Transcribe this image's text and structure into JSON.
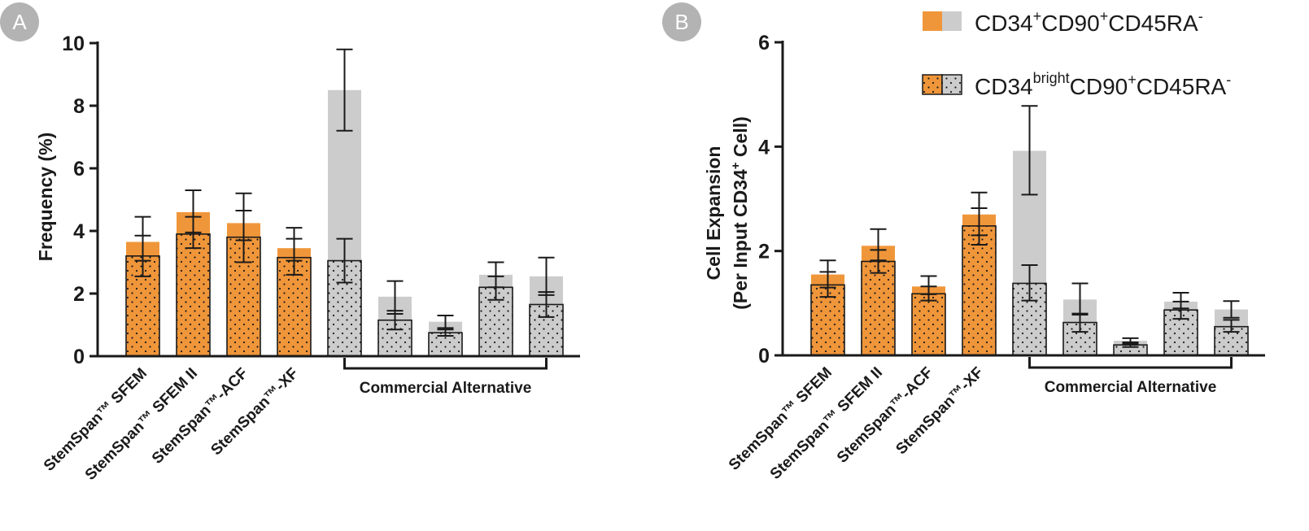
{
  "colors": {
    "stemspan": "#f0963a",
    "commercial": "#cccccc",
    "bar_edge": "#1a1a1a",
    "dots": "#1a1a1a"
  },
  "legend": {
    "total": {
      "base": "CD34",
      "s1": "+",
      "m1": "CD90",
      "s2": "+",
      "m2": "CD45RA",
      "s3": "-"
    },
    "bright": {
      "base": "CD34",
      "s1": "bright",
      "m1": "CD90",
      "s2": "+",
      "m2": "CD45RA",
      "s3": "-"
    }
  },
  "chart_data": [
    {
      "panel": "A",
      "type": "bar",
      "ylabel": "Frequency (%)",
      "ylim": [
        0,
        10
      ],
      "yticks": [
        0,
        2,
        4,
        6,
        8,
        10
      ],
      "categories": [
        "StemSpan™ SFEM",
        "StemSpan™ SFEM II",
        "StemSpan™-ACF",
        "StemSpan™-XF",
        "",
        "",
        "",
        "",
        ""
      ],
      "group_label": "Commercial Alternative",
      "series": [
        {
          "name": "CD34+CD90+CD45RA-",
          "values": [
            3.65,
            4.6,
            4.25,
            3.45,
            8.5,
            1.9,
            1.1,
            2.6,
            2.55
          ],
          "err_low": [
            3.05,
            3.95,
            3.7,
            3.05,
            7.2,
            1.35,
            0.85,
            2.2,
            1.95
          ],
          "err_high": [
            4.45,
            5.3,
            5.2,
            4.1,
            9.8,
            2.4,
            1.3,
            3.0,
            3.15
          ]
        },
        {
          "name": "CD34brightCD90+CD45RA-",
          "values": [
            3.2,
            3.9,
            3.8,
            3.15,
            3.05,
            1.15,
            0.75,
            2.2,
            1.65
          ],
          "err_low": [
            2.55,
            3.45,
            3.0,
            2.6,
            2.35,
            0.85,
            0.65,
            1.8,
            1.25
          ],
          "err_high": [
            3.85,
            4.45,
            4.65,
            3.75,
            3.75,
            1.45,
            0.9,
            2.55,
            2.05
          ]
        }
      ]
    },
    {
      "panel": "B",
      "type": "bar",
      "ylabel": "Cell Expansion",
      "ylabel2": "(Per Input CD34",
      "ylabel2_sup": "+",
      "ylabel2_end": " Cell)",
      "ylim": [
        0,
        6
      ],
      "yticks": [
        0,
        2,
        4,
        6
      ],
      "categories": [
        "StemSpan™ SFEM",
        "StemSpan™ SFEM II",
        "StemSpan™-ACF",
        "StemSpan™-XF",
        "",
        "",
        "",
        "",
        ""
      ],
      "group_label": "Commercial Alternative",
      "series": [
        {
          "name": "CD34+CD90+CD45RA-",
          "values": [
            1.55,
            2.1,
            1.32,
            2.7,
            3.92,
            1.07,
            0.28,
            1.03,
            0.88
          ],
          "err_low": [
            1.3,
            1.82,
            1.17,
            2.3,
            3.08,
            0.78,
            0.22,
            0.9,
            0.72
          ],
          "err_high": [
            1.82,
            2.42,
            1.52,
            3.12,
            4.78,
            1.38,
            0.33,
            1.2,
            1.04
          ]
        },
        {
          "name": "CD34brightCD90+CD45RA-",
          "values": [
            1.35,
            1.8,
            1.18,
            2.48,
            1.38,
            0.63,
            0.2,
            0.87,
            0.55
          ],
          "err_low": [
            1.12,
            1.58,
            1.05,
            2.12,
            1.05,
            0.45,
            0.16,
            0.7,
            0.45
          ],
          "err_high": [
            1.6,
            2.02,
            1.32,
            2.82,
            1.73,
            0.8,
            0.25,
            1.03,
            0.68
          ]
        }
      ]
    }
  ]
}
